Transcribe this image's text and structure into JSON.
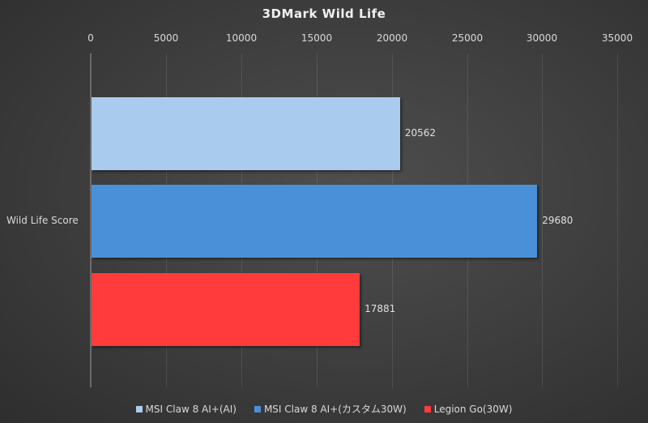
{
  "chart_data": {
    "type": "bar",
    "orientation": "horizontal",
    "title": "3DMark  Wild Life",
    "categories": [
      "Wild Life Score"
    ],
    "series": [
      {
        "name": "MSI Claw 8 AI+(AI)",
        "values": [
          20562
        ],
        "color": "#a9cbee"
      },
      {
        "name": "MSI Claw 8 AI+(カスタム30W)",
        "values": [
          29680
        ],
        "color": "#4a90d9"
      },
      {
        "name": "Legion Go(30W)",
        "values": [
          17881
        ],
        "color": "#ff3b3b"
      }
    ],
    "xlabel": "",
    "ylabel": "",
    "xlim": [
      0,
      35000
    ],
    "xticks": [
      0,
      5000,
      10000,
      15000,
      20000,
      25000,
      30000,
      35000
    ],
    "xtick_labels": [
      "0",
      "5000",
      "10000",
      "15000",
      "20000",
      "25000",
      "30000",
      "35000"
    ],
    "axis_position": "top",
    "grid": true,
    "legend_position": "bottom",
    "data_labels": [
      "20562",
      "29680",
      "17881"
    ]
  },
  "page": {
    "title": "3DMark  Wild Life",
    "category_label": "Wild Life Score",
    "ticks": [
      "0",
      "5000",
      "10000",
      "15000",
      "20000",
      "25000",
      "30000",
      "35000"
    ],
    "bars": [
      {
        "label": "20562",
        "value": 20562,
        "color": "#a9cbee"
      },
      {
        "label": "29680",
        "value": 29680,
        "color": "#4a90d9"
      },
      {
        "label": "17881",
        "value": 17881,
        "color": "#ff3b3b"
      }
    ],
    "legend": [
      {
        "label": "MSI Claw 8 AI+(AI)",
        "color": "#a9cbee"
      },
      {
        "label": "MSI Claw 8 AI+(カスタム30W)",
        "color": "#4a90d9"
      },
      {
        "label": "Legion Go(30W)",
        "color": "#ff3b3b"
      }
    ]
  }
}
